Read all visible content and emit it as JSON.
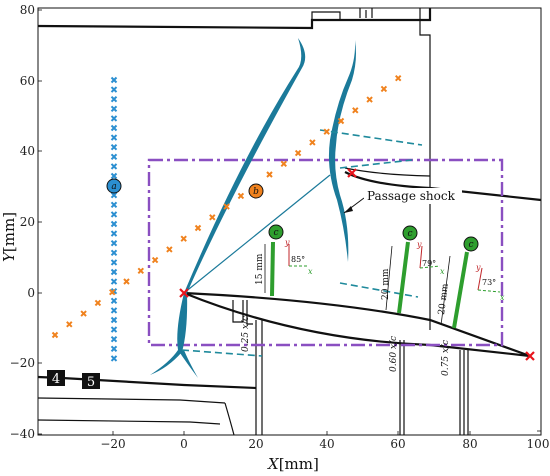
{
  "axes": {
    "x_label_main": "X",
    "x_label_unit": "[mm]",
    "y_label_main": "Y",
    "y_label_unit": "[mm]",
    "x_ticks": [
      "−20",
      "0",
      "20",
      "40",
      "60",
      "80",
      "100"
    ],
    "y_ticks": [
      "80",
      "60",
      "40",
      "20",
      "0",
      "−20",
      "−40"
    ],
    "xlim": [
      -40,
      100
    ],
    "ylim": [
      -40,
      80
    ]
  },
  "markers": {
    "a": "a",
    "b": "b",
    "c1": "c",
    "c2": "c",
    "c3": "c"
  },
  "annotations": {
    "passage_shock": "Passage shock",
    "len1": "15 mm",
    "len2": "20 mm",
    "len3": "20 mm",
    "pos1": "0.25 x/c",
    "pos2": "0.60 x/c",
    "pos3": "0.75 x/c",
    "ang1": "85°",
    "ang2": "79°",
    "ang3": "73°",
    "axis_x": "x",
    "axis_y": "y"
  },
  "labels": {
    "box4": "4",
    "box5": "5"
  },
  "colors": {
    "shock": "#1b7a9a",
    "orange": "#f0821e",
    "blue": "#2b8fd1",
    "purple": "#8a4fc1",
    "green": "#2e9e2e",
    "red": "#e8141c",
    "dash_teal": "#1f8a9c"
  },
  "icons": {
    "cross_marker": "x-mark-icon",
    "circle_label": "circle-label-icon"
  }
}
